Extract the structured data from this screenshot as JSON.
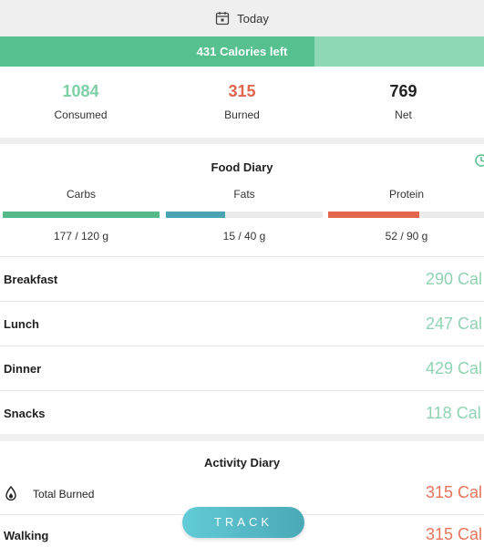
{
  "header": {
    "date_label": "Today"
  },
  "calories": {
    "left_label": "431 Calories left",
    "consumed_fraction": 0.65
  },
  "summary": {
    "consumed": {
      "value": "1084",
      "label": "Consumed"
    },
    "burned": {
      "value": "315",
      "label": "Burned"
    },
    "net": {
      "value": "769",
      "label": "Net"
    }
  },
  "food_diary": {
    "title": "Food Diary",
    "macros": [
      {
        "name": "Carbs",
        "amount": "177 / 120 g",
        "fraction": 1.0,
        "color": "#56b98a"
      },
      {
        "name": "Fats",
        "amount": "15 / 40 g",
        "fraction": 0.375,
        "color": "#4aa3b1"
      },
      {
        "name": "Protein",
        "amount": "52 / 90 g",
        "fraction": 0.58,
        "color": "#e2654d"
      }
    ],
    "meals": [
      {
        "name": "Breakfast",
        "calories": "290 Cal"
      },
      {
        "name": "Lunch",
        "calories": "247 Cal"
      },
      {
        "name": "Dinner",
        "calories": "429 Cal"
      },
      {
        "name": "Snacks",
        "calories": "118 Cal"
      }
    ]
  },
  "activity_diary": {
    "title": "Activity Diary",
    "total_burned": {
      "label": "Total Burned",
      "calories": "315 Cal"
    },
    "activities": [
      {
        "name": "Walking",
        "calories": "315 Cal"
      }
    ]
  },
  "track_button": {
    "label": "TRACK"
  },
  "colors": {
    "green": "#56c08e",
    "red": "#e2654d",
    "dark": "#222222"
  }
}
